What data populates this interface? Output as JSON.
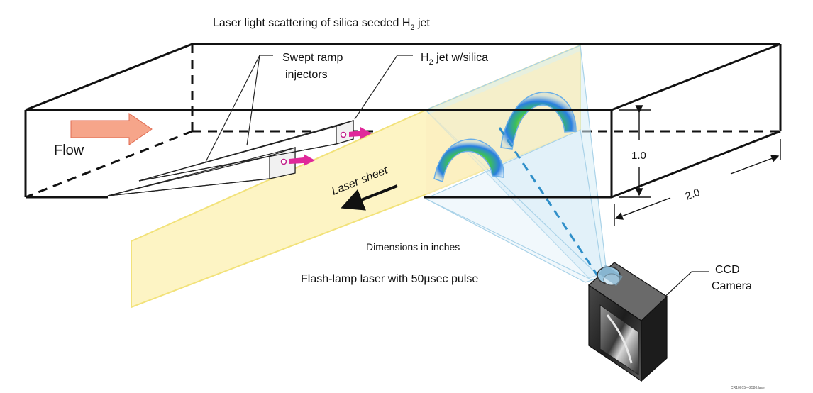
{
  "title": {
    "main": "Laser light scattering of silica seeded H",
    "sub": "2",
    "tail": " jet"
  },
  "labels": {
    "injectors_line1": "Swept ramp",
    "injectors_line2": "injectors",
    "jet_prefix": "H",
    "jet_sub": "2",
    "jet_tail": " jet w/silica",
    "flow": "Flow",
    "laser_sheet": "Laser sheet",
    "dim_height": "1.0",
    "dim_width": "2.0",
    "dimensions_note": "Dimensions in inches",
    "laser_note": "Flash-lamp laser with 50µsec pulse",
    "camera_line1": "CCD",
    "camera_line2": "Camera",
    "figure_id": "CR10015—2580.laser"
  },
  "colors": {
    "laser_sheet": "#fdf4c4",
    "laser_edge": "#f2e27a",
    "flow_arrow": "#f6a58a",
    "jet_arrow": "#e0289a",
    "light_cone": "#b9dced",
    "camera_axis": "#2f8fc9"
  }
}
